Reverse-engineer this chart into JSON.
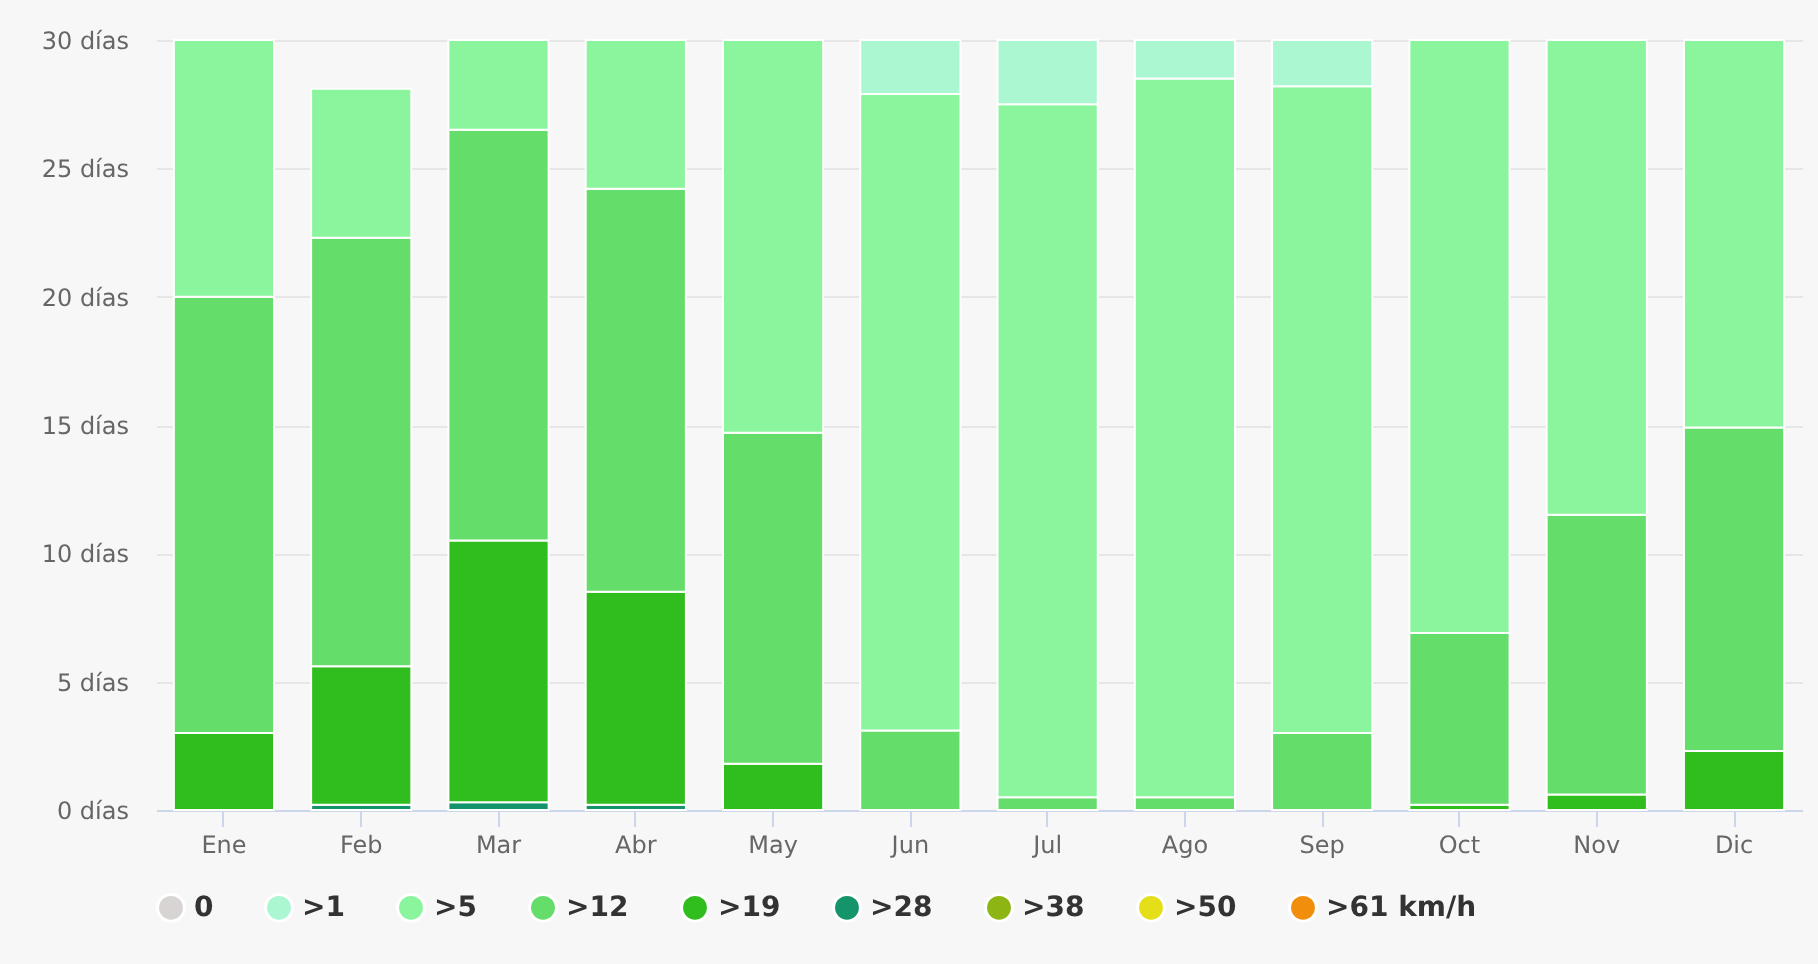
{
  "chart_data": {
    "type": "bar",
    "stacked": true,
    "categories": [
      "Ene",
      "Feb",
      "Mar",
      "Abr",
      "May",
      "Jun",
      "Jul",
      "Ago",
      "Sep",
      "Oct",
      "Nov",
      "Dic"
    ],
    "series": [
      {
        "name": ">61 km/h",
        "color": "#f18f0c",
        "values": [
          null,
          null,
          null,
          null,
          null,
          null,
          null,
          null,
          null,
          null,
          null,
          null
        ]
      },
      {
        "name": ">50",
        "color": "#e5df1a",
        "values": [
          null,
          null,
          null,
          null,
          null,
          null,
          null,
          null,
          null,
          null,
          null,
          null
        ]
      },
      {
        "name": ">38",
        "color": "#8db513",
        "values": [
          null,
          null,
          null,
          null,
          null,
          null,
          null,
          null,
          null,
          null,
          null,
          null
        ]
      },
      {
        "name": ">28",
        "color": "#14946a",
        "values": [
          null,
          0.2,
          0.3,
          0.2,
          null,
          null,
          null,
          null,
          null,
          null,
          null,
          null
        ]
      },
      {
        "name": ">19",
        "color": "#30bd1e",
        "values": [
          3.0,
          5.4,
          10.2,
          8.3,
          1.8,
          null,
          null,
          null,
          null,
          0.2,
          0.6,
          2.3
        ]
      },
      {
        "name": ">12",
        "color": "#65dd6a",
        "values": [
          17.0,
          16.7,
          16.0,
          15.7,
          12.9,
          3.1,
          0.5,
          0.5,
          3.0,
          6.7,
          10.9,
          12.6
        ]
      },
      {
        "name": ">5",
        "color": "#8af59c",
        "values": [
          10.0,
          5.8,
          3.5,
          5.8,
          15.3,
          24.8,
          27.0,
          28.0,
          25.2,
          23.1,
          18.5,
          15.1
        ]
      },
      {
        "name": ">1",
        "color": "#aaf7d1",
        "values": [
          null,
          null,
          null,
          null,
          null,
          2.1,
          2.5,
          1.5,
          1.8,
          null,
          null,
          null
        ]
      },
      {
        "name": "0",
        "color": "#d8d4d4",
        "values": [
          null,
          null,
          null,
          null,
          null,
          null,
          null,
          null,
          null,
          null,
          null,
          null
        ]
      }
    ],
    "ylim": [
      0,
      30
    ],
    "yticks": [
      {
        "value": 0,
        "label": "0 días"
      },
      {
        "value": 5,
        "label": "5 días"
      },
      {
        "value": 10,
        "label": "10 días"
      },
      {
        "value": 15,
        "label": "15 días"
      },
      {
        "value": 20,
        "label": "20 días"
      },
      {
        "value": 25,
        "label": "25 días"
      },
      {
        "value": 30,
        "label": "30 días"
      }
    ],
    "grid": "y",
    "legend": "bottom"
  }
}
